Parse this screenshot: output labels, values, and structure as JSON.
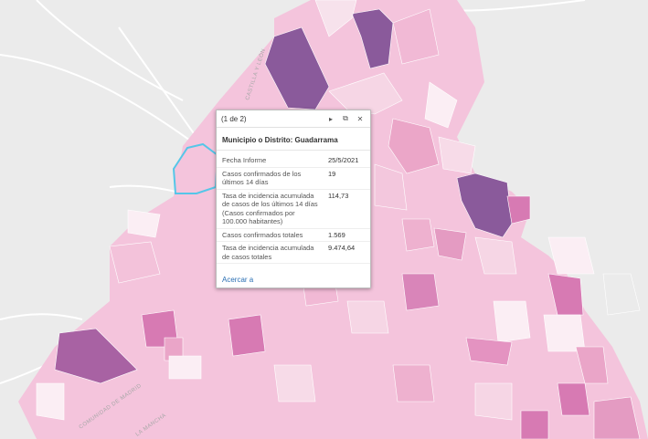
{
  "popup": {
    "pager": "(1 de 2)",
    "title": "Municipio o Distrito: Guadarrama",
    "fields": [
      {
        "label": "Fecha Informe",
        "value": "25/5/2021"
      },
      {
        "label": "Casos confirmados de los últimos 14 días",
        "value": "19"
      },
      {
        "label": "Tasa de incidencia acumulada de casos de los últimos 14 días (Casos confirmados por 100.000 habitantes)",
        "value": "114,73"
      },
      {
        "label": "Casos confirmados totales",
        "value": "1.569"
      },
      {
        "label": "Tasa de incidencia acumulada de casos totales",
        "value": "9.474,64"
      }
    ],
    "zoom_link": "Acercar a",
    "icons": {
      "next": "play-icon",
      "dock": "dock-icon",
      "close": "close-icon"
    }
  },
  "map_labels": {
    "castilla": "CASTILLA Y LEÓN",
    "comunidad": "COMUNIDAD DE MADRID",
    "mancha": "LA MANCHA"
  },
  "colors": {
    "background": "#ebebeb",
    "light_pink": "#f6d6e5",
    "mid_pink": "#eba6c8",
    "dark_pink": "#d77ab3",
    "purple": "#8a5a9b",
    "highlight": "#55c6e8",
    "link": "#2a6fb3"
  }
}
